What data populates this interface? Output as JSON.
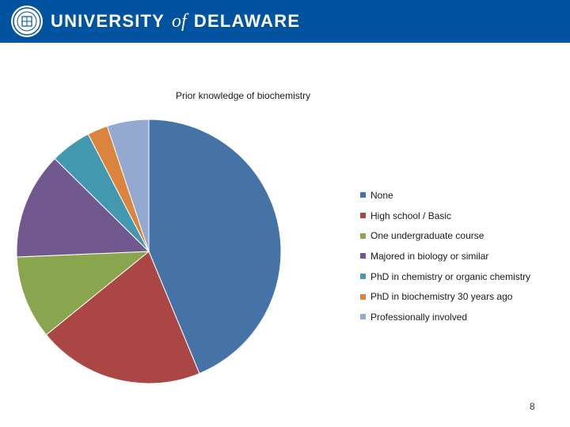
{
  "header": {
    "wordmark_left": "UNIVERSITY",
    "wordmark_of": "of",
    "wordmark_right": "DELAWARE",
    "bar_color": "#00539f",
    "seal_icon": "university-seal-icon"
  },
  "chart_data": {
    "type": "pie",
    "title": "Prior knowledge of biochemistry",
    "legend_position": "right",
    "categories": [
      "None",
      "High school / Basic",
      "One undergraduate course",
      "Majored in biology or similar",
      "PhD in chemistry or organic chemistry",
      "PhD in biochemistry 30 years ago",
      "Professionally involved"
    ],
    "values": [
      45.5,
      21.2,
      10.6,
      13.6,
      5.2,
      2.6,
      5.3
    ],
    "colors": [
      "#4572a7",
      "#aa4643",
      "#89a54e",
      "#71588f",
      "#4198af",
      "#db843d",
      "#93a9cf"
    ]
  },
  "page_number": "8"
}
